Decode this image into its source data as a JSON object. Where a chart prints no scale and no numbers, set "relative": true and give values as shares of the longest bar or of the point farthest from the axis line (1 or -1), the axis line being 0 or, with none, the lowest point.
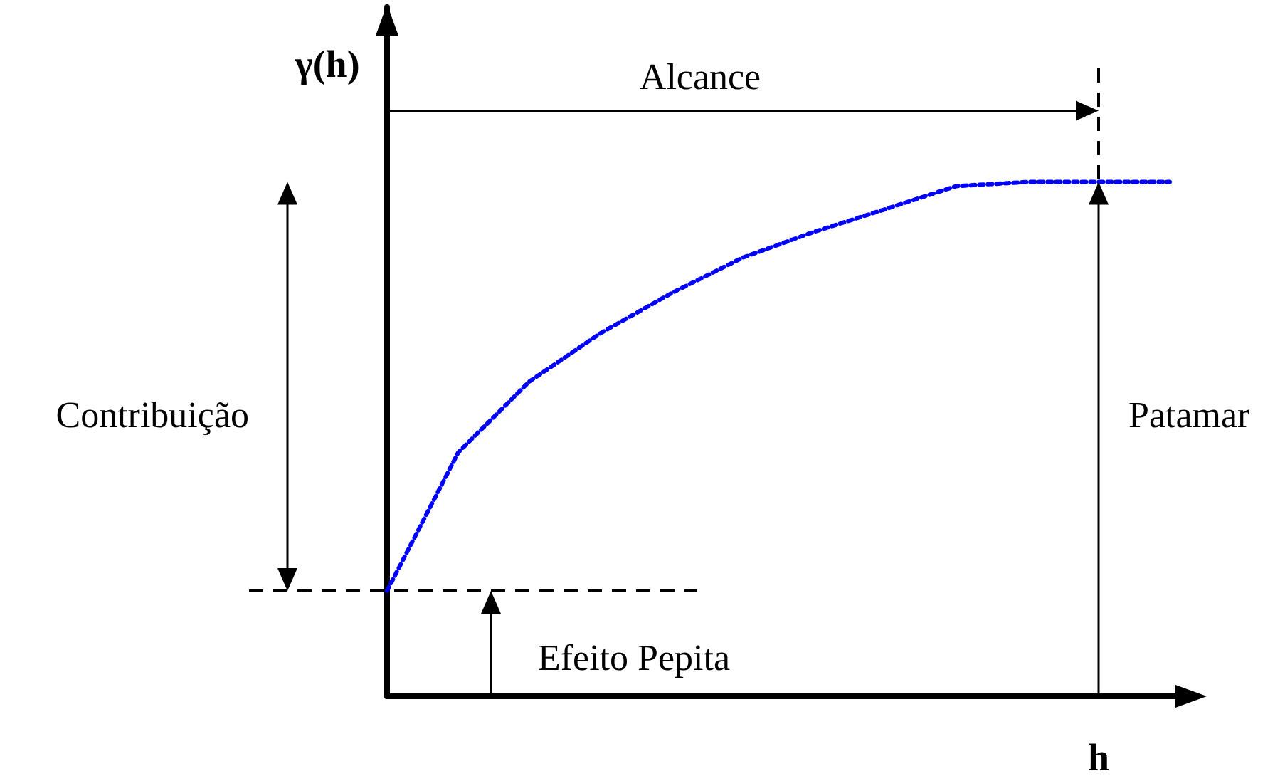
{
  "chart_data": {
    "type": "line",
    "relative": true,
    "xlabel": "h",
    "ylabel": "γ(h)",
    "categories": [
      null,
      null,
      null,
      null,
      null,
      null,
      null,
      null,
      null,
      null,
      null,
      null
    ],
    "series": [
      {
        "color": "#0000ff",
        "values": [
          0.205,
          0.474,
          0.612,
          0.706,
          0.784,
          0.853,
          0.903,
          0.947,
          0.992,
          1,
          1,
          1
        ]
      }
    ],
    "line_style": "dotted",
    "marker": "none",
    "annotations": [
      "Alcance",
      "Contribuição",
      "Patamar",
      "Efeito Pepita"
    ]
  }
}
